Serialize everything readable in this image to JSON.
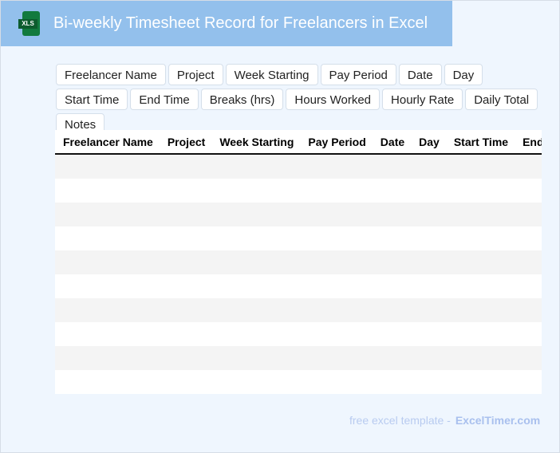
{
  "header": {
    "title": "Bi-weekly Timesheet Record for Freelancers in Excel",
    "icon": "xls-file-icon",
    "icon_label": "XLS"
  },
  "fields": [
    "Freelancer Name",
    "Project",
    "Week Starting",
    "Pay Period",
    "Date",
    "Day",
    "Start Time",
    "End Time",
    "Breaks (hrs)",
    "Hours Worked",
    "Hourly Rate",
    "Daily Total",
    "Notes"
  ],
  "table": {
    "columns": [
      "Freelancer Name",
      "Project",
      "Week Starting",
      "Pay Period",
      "Date",
      "Day",
      "Start Time",
      "End Time"
    ],
    "row_count": 10
  },
  "footer": {
    "text": "free excel template -",
    "brand": "ExcelTimer.com"
  }
}
